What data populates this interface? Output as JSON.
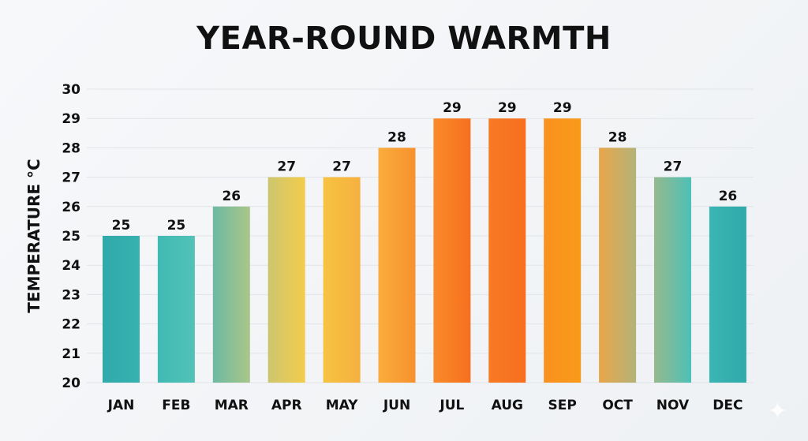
{
  "chart_data": {
    "type": "bar",
    "title": "YEAR-ROUND WARMTH",
    "xlabel": "",
    "ylabel": "TEMPERATURE °C",
    "ylim": [
      20,
      30
    ],
    "yticks": [
      20,
      21,
      22,
      23,
      24,
      25,
      26,
      27,
      28,
      29,
      30
    ],
    "grid": true,
    "categories": [
      "JAN",
      "FEB",
      "MAR",
      "APR",
      "MAY",
      "JUN",
      "JUL",
      "AUG",
      "SEP",
      "OCT",
      "NOV",
      "DEC"
    ],
    "values": [
      25,
      25,
      26,
      27,
      27,
      28,
      29,
      29,
      29,
      28,
      27,
      26
    ],
    "data_labels": true,
    "colors": [
      [
        "#2fa9aa",
        "#38b2b0"
      ],
      [
        "#40bab4",
        "#52c2b6"
      ],
      [
        "#6db9a2",
        "#a9c689"
      ],
      [
        "#cdc66e",
        "#f3cc4c"
      ],
      [
        "#f6c342",
        "#f6b03f"
      ],
      [
        "#f9ad3c",
        "#f8912d"
      ],
      [
        "#f98a2a",
        "#f7701f"
      ],
      [
        "#f77a23",
        "#f66f20"
      ],
      [
        "#f9911f",
        "#f99a1a"
      ],
      [
        "#e9a64a",
        "#b3b378"
      ],
      [
        "#95b98e",
        "#4dc0b6"
      ],
      [
        "#3bb6b3",
        "#2fa9aa"
      ]
    ]
  }
}
